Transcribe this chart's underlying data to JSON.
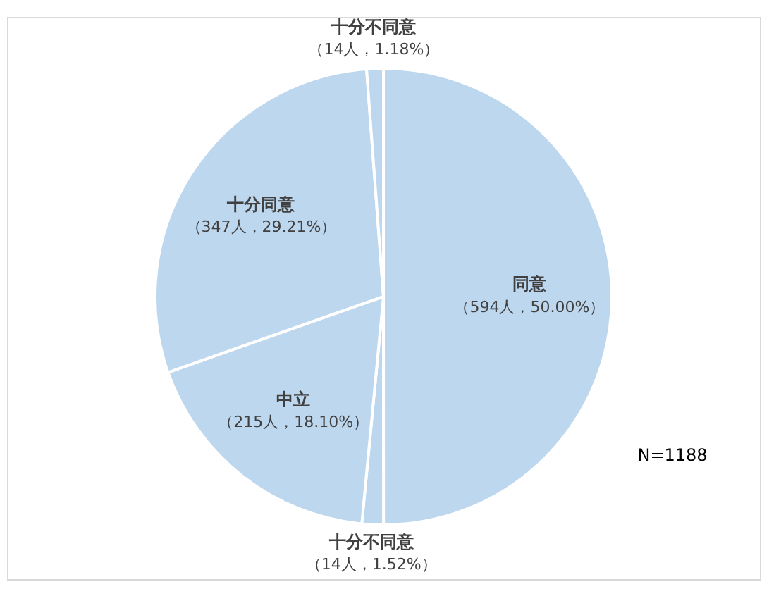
{
  "chart_data": {
    "type": "pie",
    "categories": [
      "同意",
      "十分不同意",
      "中立",
      "十分同意",
      "十分不同意"
    ],
    "values": [
      50.0,
      1.52,
      18.1,
      29.21,
      1.18
    ],
    "colors": [
      "#bdd7ee",
      "#bdd7ee",
      "#bdd7ee",
      "#bdd7ee",
      "#bdd7ee"
    ],
    "value_labels": [
      "（594人，50.00%）",
      "（14人，1.52%）",
      "（215人，18.10%）",
      "（347人，29.21%）",
      "（14人，1.18%）"
    ],
    "annotations": [
      "N=1188"
    ]
  }
}
